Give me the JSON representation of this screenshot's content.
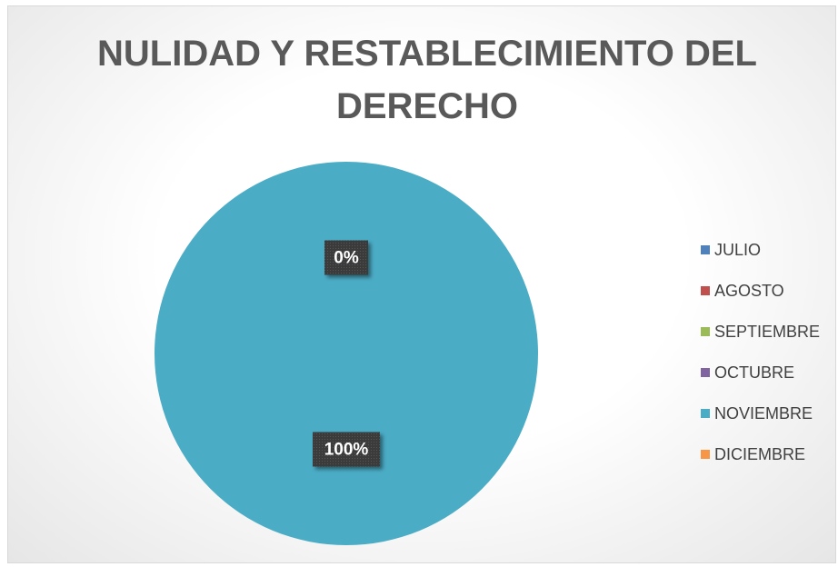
{
  "chart_data": {
    "type": "pie",
    "title": "NULIDAD Y RESTABLECIMIENTO DEL DERECHO",
    "categories": [
      "JULIO",
      "AGOSTO",
      "SEPTIEMBRE",
      "OCTUBRE",
      "NOVIEMBRE",
      "DICIEMBRE"
    ],
    "values": [
      0,
      0,
      0,
      0,
      100,
      0
    ],
    "value_labels": [
      null,
      null,
      null,
      null,
      "100%",
      "0%"
    ],
    "colors": [
      "#4f81bd",
      "#c0504d",
      "#9bbb59",
      "#8064a2",
      "#4bacc6",
      "#f79646"
    ],
    "legend": "right"
  }
}
